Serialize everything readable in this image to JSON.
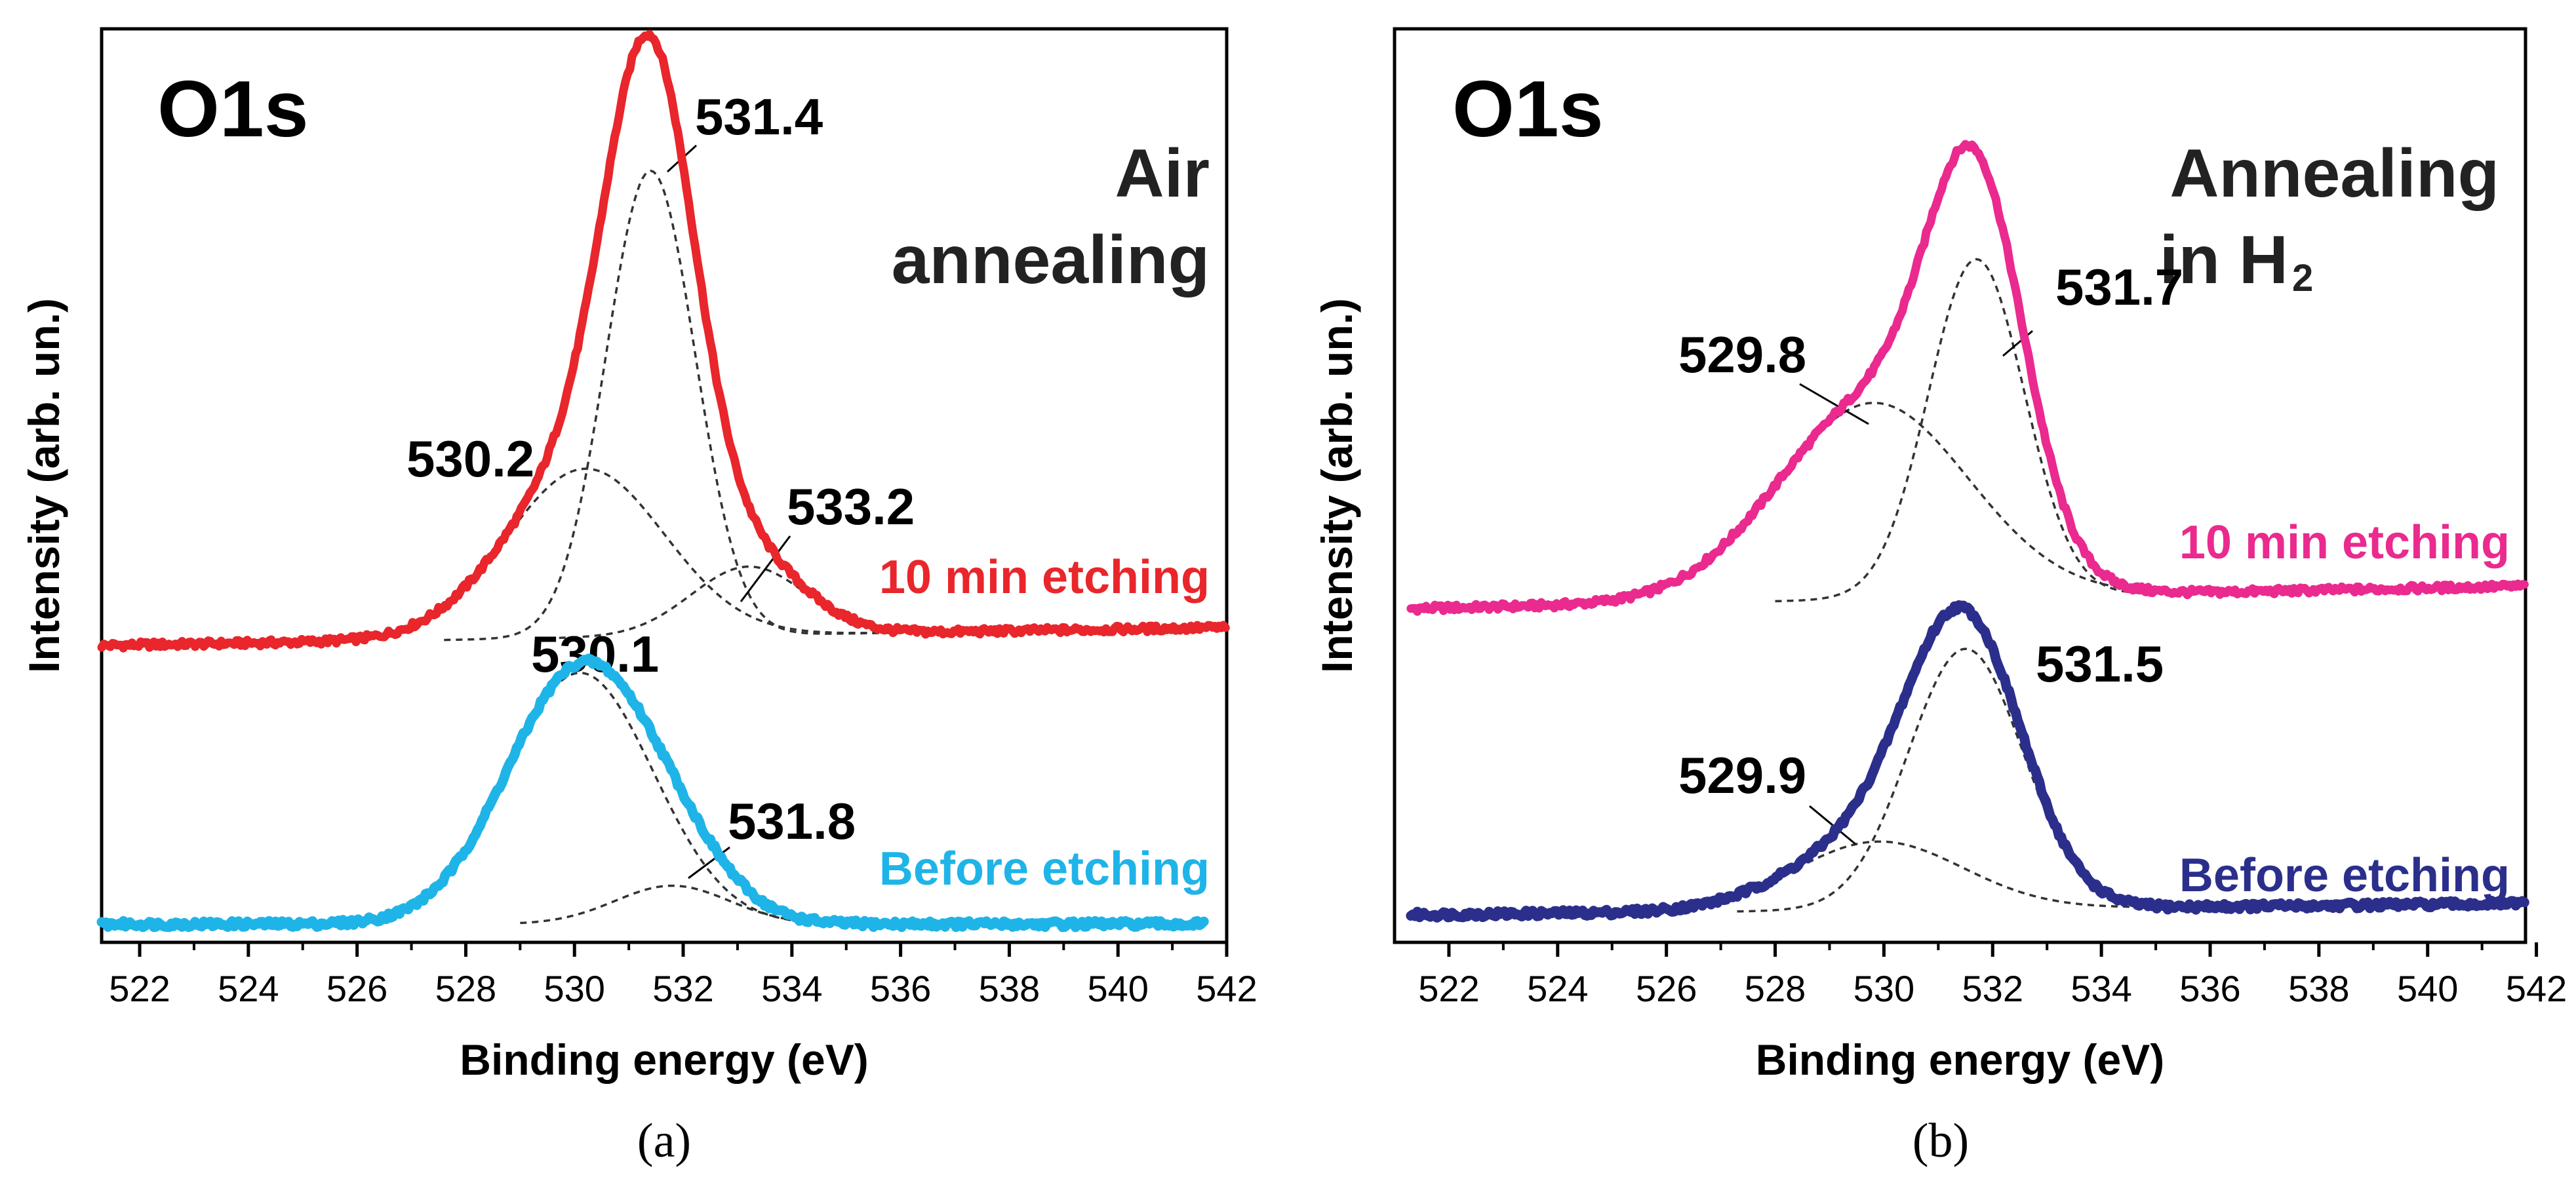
{
  "chart_data": [
    {
      "type": "line",
      "panel_caption": "(a)",
      "title": "O1s",
      "condition_lines": [
        "Air",
        "annealing"
      ],
      "xlabel": "Binding energy (eV)",
      "ylabel": "Intensity (arb. un.)",
      "xlim": [
        521.3,
        542
      ],
      "ylim": [
        0,
        100
      ],
      "x_ticks": [
        "522",
        "524",
        "526",
        "528",
        "530",
        "532",
        "534",
        "536",
        "538",
        "540",
        "542"
      ],
      "grid": false,
      "series": [
        {
          "name": "10 min etching",
          "color": "#e8262b",
          "baseline": 32.5,
          "slope": 0.095,
          "components": [
            {
              "center": 531.4,
              "amplitude": 51.0,
              "sigma": 0.82,
              "label": "531.4"
            },
            {
              "center": 530.2,
              "amplitude": 18.5,
              "sigma": 1.45,
              "label": "530.2"
            },
            {
              "center": 533.2,
              "amplitude": 7.5,
              "sigma": 1.05,
              "label": "533.2"
            }
          ]
        },
        {
          "name": "Before etching",
          "color": "#1fb4e8",
          "baseline": 2.0,
          "slope": 0.0,
          "components": [
            {
              "center": 530.1,
              "amplitude": 27.5,
              "sigma": 1.35,
              "label": "530.1"
            },
            {
              "center": 531.8,
              "amplitude": 4.2,
              "sigma": 1.05,
              "label": "531.8"
            }
          ]
        }
      ]
    },
    {
      "type": "line",
      "panel_caption": "(b)",
      "title": "O1s",
      "condition_lines": [
        "Annealing",
        "in H",
        "2"
      ],
      "xlabel": "Binding energy (eV)",
      "ylabel": "Intensity (arb. un.)",
      "xlim": [
        521,
        541.8
      ],
      "ylim": [
        0,
        100
      ],
      "x_ticks": [
        "522",
        "524",
        "526",
        "528",
        "530",
        "532",
        "534",
        "536",
        "538",
        "540",
        "542"
      ],
      "grid": false,
      "series": [
        {
          "name": "10 min etching",
          "color": "#ea2a8e",
          "baseline": 36.5,
          "slope": 0.12,
          "components": [
            {
              "center": 531.7,
              "amplitude": 37.0,
              "sigma": 0.88,
              "label": "531.7"
            },
            {
              "center": 529.8,
              "amplitude": 21.5,
              "sigma": 1.75,
              "label": "529.8"
            }
          ]
        },
        {
          "name": "Before etching",
          "color": "#2b2f8b",
          "baseline": 3.0,
          "slope": 0.06,
          "components": [
            {
              "center": 531.5,
              "amplitude": 28.5,
              "sigma": 1.05,
              "label": "531.5"
            },
            {
              "center": 529.9,
              "amplitude": 7.5,
              "sigma": 1.55,
              "label": "529.9"
            }
          ]
        }
      ]
    }
  ]
}
